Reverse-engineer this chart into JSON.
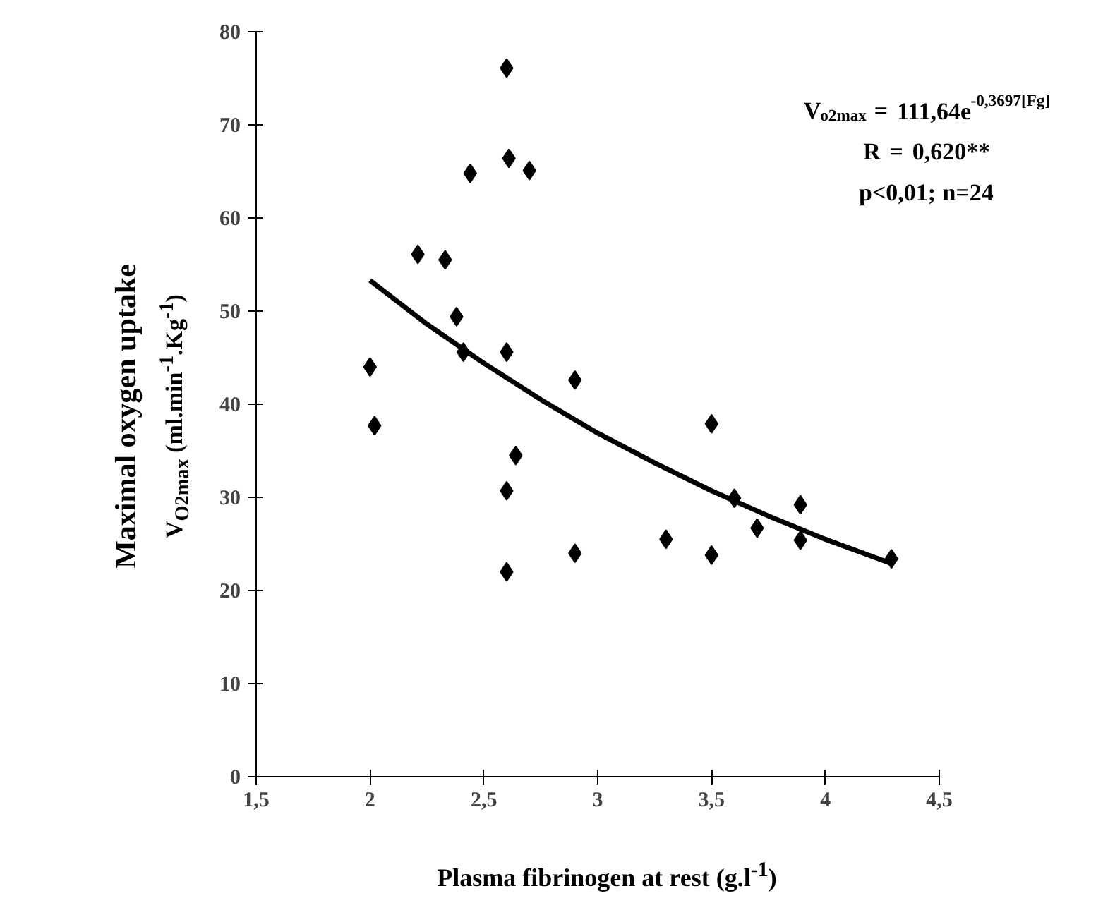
{
  "chart_data": {
    "type": "scatter",
    "xlabel": "Plasma fibrinogen at rest (g.l$^{-1}$)",
    "ylabel": "Maximal oxygen uptake\nV$_{O2max}$ (ml.min$^{-1}$.Kg$^{-1}$)",
    "annotations": [
      "V$_{o2max}$ = 111,64e$^{-0,3697[Fg]}$",
      "R = 0,620**",
      "p<0,01; n=24"
    ],
    "marker": "diamond",
    "grid": false,
    "xlim": [
      1.5,
      4.5
    ],
    "xticks": [
      {
        "value": 1.5,
        "label": "1,5"
      },
      2,
      {
        "value": 2.5,
        "label": "2,5"
      },
      3,
      {
        "value": 3.5,
        "label": "3,5"
      },
      4,
      {
        "value": 4.5,
        "label": "4,5"
      }
    ],
    "ylim": [
      0,
      80
    ],
    "yticks": [
      0,
      10,
      20,
      30,
      40,
      50,
      60,
      70,
      80
    ],
    "series": [
      {
        "color": "#000000",
        "x": [
          2.6,
          2.61,
          2.7,
          2.44,
          2.21,
          2.33,
          2.38,
          2.41,
          2.6,
          2.9,
          2.0,
          2.02,
          2.64,
          2.6,
          2.6,
          2.9,
          3.5,
          3.6,
          3.89,
          3.7,
          3.3,
          3.89,
          3.5,
          4.29
        ],
        "values": [
          76.1,
          66.4,
          65.1,
          64.8,
          56.1,
          55.5,
          49.4,
          45.6,
          45.6,
          42.6,
          44.0,
          37.7,
          34.5,
          30.7,
          22.0,
          24.0,
          37.9,
          29.9,
          29.2,
          26.7,
          25.5,
          25.4,
          23.8,
          23.4
        ]
      },
      {
        "type": "line",
        "color": "#000000",
        "marker": "none",
        "x": [
          2.0,
          2.25,
          2.5,
          2.75,
          3.0,
          3.25,
          3.5,
          3.75,
          4.0,
          4.3
        ],
        "values": [
          53.3,
          48.6,
          44.4,
          40.5,
          36.9,
          33.7,
          30.7,
          28.0,
          25.5,
          22.8
        ]
      }
    ]
  }
}
